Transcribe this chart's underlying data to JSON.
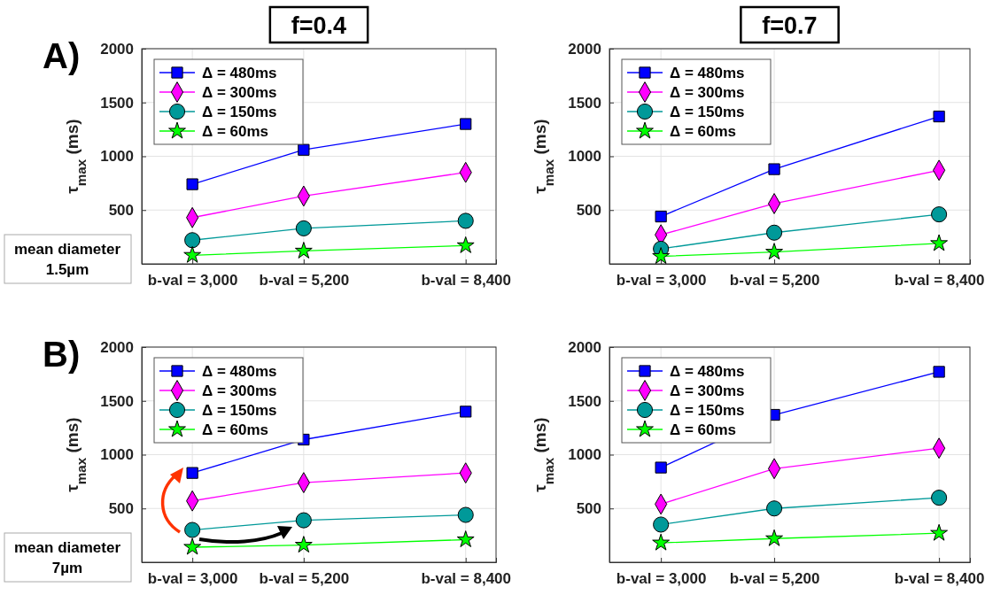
{
  "chart_data": [
    {
      "type": "line",
      "title": "f=0.4",
      "ylabel": "τ$_{max}$ (ms)",
      "annotations": [
        "A)",
        "mean diameter\n1.5µm"
      ],
      "x": [
        3000,
        5200,
        8400
      ],
      "xlim": [
        2000,
        9000
      ],
      "xticks": [
        {
          "value": 3000,
          "label": "b-val = 3,000"
        },
        {
          "value": 5200,
          "label": "b-val = 5,200"
        },
        {
          "value": 8400,
          "label": "b-val = 8,400"
        }
      ],
      "ylim": [
        0,
        2000
      ],
      "yticks": [
        500,
        1000,
        1500,
        2000
      ],
      "grid": true,
      "legend": "top left",
      "line_style": "solid",
      "series": [
        {
          "name": "Δ = 480ms",
          "color": "#0000ff",
          "marker": "square",
          "values": [
            740,
            1060,
            1300
          ]
        },
        {
          "name": "Δ = 300ms",
          "color": "#ff00ff",
          "marker": "diamond",
          "values": [
            430,
            630,
            850
          ]
        },
        {
          "name": "Δ = 150ms",
          "color": "#009999",
          "marker": "circle",
          "values": [
            220,
            330,
            400
          ]
        },
        {
          "name": "Δ = 60ms",
          "color": "#00ff00",
          "marker": "star",
          "values": [
            80,
            120,
            170
          ]
        }
      ]
    },
    {
      "type": "line",
      "title": "f=0.7",
      "ylabel": "τ$_{max}$ (ms)",
      "x": [
        3000,
        5200,
        8400
      ],
      "xlim": [
        2000,
        9000
      ],
      "xticks": [
        {
          "value": 3000,
          "label": "b-val = 3,000"
        },
        {
          "value": 5200,
          "label": "b-val = 5,200"
        },
        {
          "value": 8400,
          "label": "b-val = 8,400"
        }
      ],
      "ylim": [
        0,
        2000
      ],
      "yticks": [
        500,
        1000,
        1500,
        2000
      ],
      "grid": true,
      "legend": "top left",
      "line_style": "solid",
      "series": [
        {
          "name": "Δ = 480ms",
          "color": "#0000ff",
          "marker": "square",
          "values": [
            440,
            880,
            1370
          ]
        },
        {
          "name": "Δ = 300ms",
          "color": "#ff00ff",
          "marker": "diamond",
          "values": [
            270,
            560,
            870
          ]
        },
        {
          "name": "Δ = 150ms",
          "color": "#009999",
          "marker": "circle",
          "values": [
            140,
            290,
            460
          ]
        },
        {
          "name": "Δ = 60ms",
          "color": "#00ff00",
          "marker": "star",
          "values": [
            70,
            110,
            190
          ]
        }
      ]
    },
    {
      "type": "line",
      "ylabel": "τ$_{max}$ (ms)",
      "annotations": [
        "B)",
        "mean diameter\n7µm"
      ],
      "x": [
        3000,
        5200,
        8400
      ],
      "xlim": [
        2000,
        9000
      ],
      "xticks": [
        {
          "value": 3000,
          "label": "b-val = 3,000"
        },
        {
          "value": 5200,
          "label": "b-val = 5,200"
        },
        {
          "value": 8400,
          "label": "b-val = 8,400"
        }
      ],
      "ylim": [
        0,
        2000
      ],
      "yticks": [
        500,
        1000,
        1500,
        2000
      ],
      "grid": true,
      "legend": "top left",
      "line_style": "solid",
      "series": [
        {
          "name": "Δ = 480ms",
          "color": "#0000ff",
          "marker": "square",
          "values": [
            830,
            1140,
            1400
          ]
        },
        {
          "name": "Δ = 300ms",
          "color": "#ff00ff",
          "marker": "diamond",
          "values": [
            570,
            740,
            830
          ]
        },
        {
          "name": "Δ = 150ms",
          "color": "#009999",
          "marker": "circle",
          "values": [
            300,
            390,
            440
          ]
        },
        {
          "name": "Δ = 60ms",
          "color": "#00ff00",
          "marker": "star",
          "values": [
            140,
            160,
            210
          ]
        }
      ]
    },
    {
      "type": "line",
      "ylabel": "τ$_{max}$ (ms)",
      "x": [
        3000,
        5200,
        8400
      ],
      "xlim": [
        2000,
        9000
      ],
      "xticks": [
        {
          "value": 3000,
          "label": "b-val = 3,000"
        },
        {
          "value": 5200,
          "label": "b-val = 5,200"
        },
        {
          "value": 8400,
          "label": "b-val = 8,400"
        }
      ],
      "ylim": [
        0,
        2000
      ],
      "yticks": [
        500,
        1000,
        1500,
        2000
      ],
      "grid": true,
      "legend": "top left",
      "line_style": "solid",
      "series": [
        {
          "name": "Δ = 480ms",
          "color": "#0000ff",
          "marker": "square",
          "values": [
            880,
            1370,
            1770
          ]
        },
        {
          "name": "Δ = 300ms",
          "color": "#ff00ff",
          "marker": "diamond",
          "values": [
            540,
            870,
            1060
          ]
        },
        {
          "name": "Δ = 150ms",
          "color": "#009999",
          "marker": "circle",
          "values": [
            350,
            500,
            600
          ]
        },
        {
          "name": "Δ = 60ms",
          "color": "#00ff00",
          "marker": "star",
          "values": [
            180,
            220,
            270
          ]
        }
      ]
    }
  ]
}
